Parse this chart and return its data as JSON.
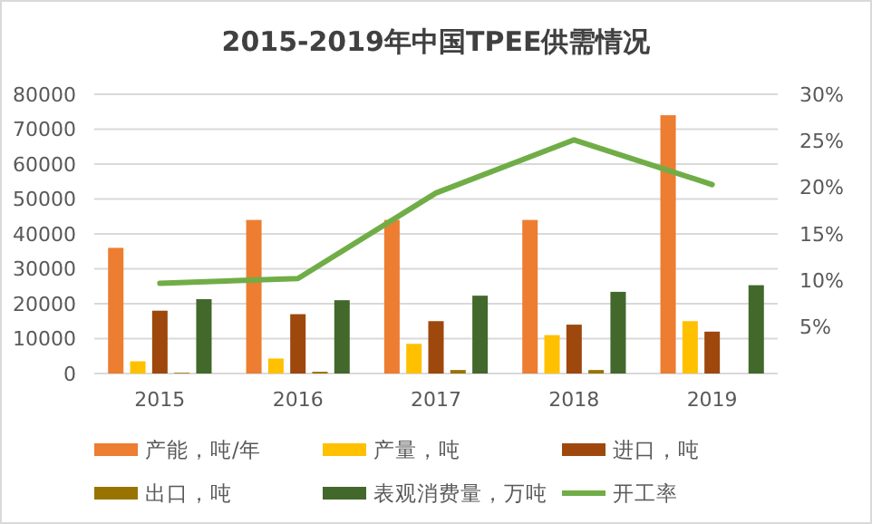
{
  "chart_data": {
    "type": "bar",
    "title": "2015-2019年中国TPEE供需情况",
    "categories": [
      "2015",
      "2016",
      "2017",
      "2018",
      "2019"
    ],
    "series": [
      {
        "name": "产能，吨/年",
        "color": "#ed7d31",
        "values": [
          36000,
          44000,
          44000,
          44000,
          74000
        ]
      },
      {
        "name": "产量，吨",
        "color": "#ffc000",
        "values": [
          3500,
          4300,
          8500,
          11000,
          15000
        ]
      },
      {
        "name": "进口，吨",
        "color": "#9e480e",
        "values": [
          18000,
          17000,
          15000,
          14000,
          12000
        ]
      },
      {
        "name": "出口，吨",
        "color": "#997300",
        "values": [
          200,
          500,
          1000,
          1000,
          null
        ]
      },
      {
        "name": "表观消费量，万吨",
        "color": "#43682b",
        "values": [
          21300,
          21000,
          22300,
          23400,
          25300
        ]
      },
      {
        "name": "开工率",
        "type": "line",
        "axis": "y2",
        "color": "#70ad47",
        "values": [
          9.7,
          10.2,
          19.4,
          25.1,
          20.3
        ]
      }
    ],
    "ylim": [
      0,
      80000
    ],
    "yticks": [
      0,
      10000,
      20000,
      30000,
      40000,
      50000,
      60000,
      70000,
      80000
    ],
    "y2lim": [
      0,
      30
    ],
    "y2ticks": [
      {
        "value": 5,
        "label": "5%"
      },
      {
        "value": 10,
        "label": "10%"
      },
      {
        "value": 15,
        "label": "15%"
      },
      {
        "value": 20,
        "label": "20%"
      },
      {
        "value": 25,
        "label": "25%"
      },
      {
        "value": 30,
        "label": "30%"
      }
    ],
    "grid": "y",
    "legend": "bottom"
  }
}
